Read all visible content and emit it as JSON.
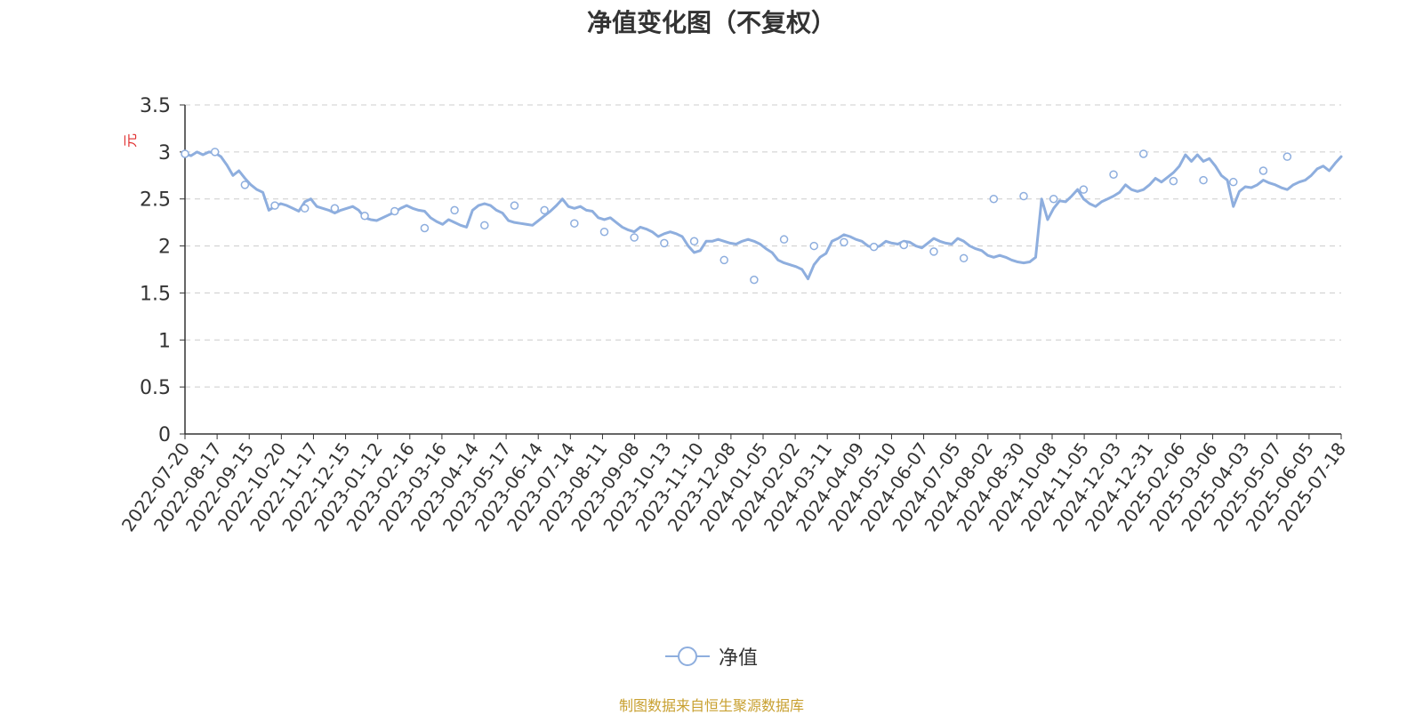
{
  "chart_data": {
    "type": "line",
    "title": "净值变化图（不复权）",
    "ylabel": "元",
    "ylim": [
      0,
      3.5
    ],
    "yticks": [
      "0",
      "0.5",
      "1",
      "1.5",
      "2",
      "2.5",
      "3",
      "3.5"
    ],
    "xticks": [
      "2022-07-20",
      "2022-08-17",
      "2022-09-15",
      "2022-10-20",
      "2022-11-17",
      "2022-12-15",
      "2023-01-12",
      "2023-02-16",
      "2023-03-16",
      "2023-04-14",
      "2023-05-17",
      "2023-06-14",
      "2023-07-14",
      "2023-08-11",
      "2023-09-08",
      "2023-10-13",
      "2023-11-10",
      "2023-12-08",
      "2024-01-05",
      "2024-02-02",
      "2024-03-11",
      "2024-04-09",
      "2024-05-10",
      "2024-06-07",
      "2024-07-05",
      "2024-08-02",
      "2024-08-30",
      "2024-10-08",
      "2024-11-05",
      "2024-12-03",
      "2024-12-31",
      "2025-02-06",
      "2025-03-06",
      "2025-04-03",
      "2025-05-07",
      "2025-06-05",
      "2025-07-18"
    ],
    "grid": true,
    "legend_position": "bottom-center",
    "series": [
      {
        "name": "净值",
        "color": "#8eaede",
        "values": [
          2.98,
          2.96,
          3.0,
          2.97,
          3.0,
          2.99,
          2.95,
          2.86,
          2.75,
          2.8,
          2.72,
          2.65,
          2.6,
          2.57,
          2.38,
          2.42,
          2.45,
          2.43,
          2.4,
          2.37,
          2.47,
          2.5,
          2.42,
          2.4,
          2.38,
          2.35,
          2.38,
          2.4,
          2.42,
          2.38,
          2.3,
          2.28,
          2.27,
          2.3,
          2.33,
          2.36,
          2.4,
          2.43,
          2.4,
          2.38,
          2.37,
          2.3,
          2.26,
          2.23,
          2.28,
          2.25,
          2.22,
          2.2,
          2.38,
          2.43,
          2.45,
          2.43,
          2.38,
          2.35,
          2.27,
          2.25,
          2.24,
          2.23,
          2.22,
          2.27,
          2.32,
          2.37,
          2.43,
          2.5,
          2.42,
          2.4,
          2.42,
          2.38,
          2.37,
          2.3,
          2.28,
          2.3,
          2.25,
          2.2,
          2.17,
          2.15,
          2.2,
          2.18,
          2.15,
          2.1,
          2.13,
          2.15,
          2.13,
          2.1,
          2.0,
          1.93,
          1.95,
          2.05,
          2.05,
          2.07,
          2.05,
          2.03,
          2.02,
          2.05,
          2.07,
          2.05,
          2.02,
          1.97,
          1.93,
          1.85,
          1.82,
          1.8,
          1.78,
          1.75,
          1.65,
          1.8,
          1.88,
          1.92,
          2.05,
          2.08,
          2.12,
          2.1,
          2.07,
          2.05,
          2.0,
          1.98,
          2.0,
          2.05,
          2.03,
          2.02,
          2.05,
          2.04,
          2.0,
          1.98,
          2.03,
          2.08,
          2.05,
          2.03,
          2.02,
          2.08,
          2.05,
          2.0,
          1.97,
          1.95,
          1.9,
          1.88,
          1.9,
          1.88,
          1.85,
          1.83,
          1.82,
          1.83,
          1.88,
          2.5,
          2.28,
          2.4,
          2.48,
          2.47,
          2.53,
          2.6,
          2.5,
          2.45,
          2.42,
          2.47,
          2.5,
          2.53,
          2.57,
          2.65,
          2.6,
          2.58,
          2.6,
          2.65,
          2.72,
          2.68,
          2.73,
          2.78,
          2.85,
          2.97,
          2.9,
          2.97,
          2.9,
          2.93,
          2.85,
          2.75,
          2.7,
          2.42,
          2.58,
          2.63,
          2.62,
          2.65,
          2.7,
          2.67,
          2.65,
          2.62,
          2.6,
          2.65,
          2.68,
          2.7,
          2.75,
          2.82,
          2.85,
          2.8,
          2.88,
          2.95
        ]
      }
    ],
    "markers": [
      {
        "index": 0,
        "value": 2.98
      },
      {
        "index": 5,
        "value": 3.0
      },
      {
        "index": 10,
        "value": 2.65
      },
      {
        "index": 15,
        "value": 2.43
      },
      {
        "index": 20,
        "value": 2.4
      },
      {
        "index": 25,
        "value": 2.4
      },
      {
        "index": 30,
        "value": 2.32
      },
      {
        "index": 35,
        "value": 2.37
      },
      {
        "index": 40,
        "value": 2.19
      },
      {
        "index": 45,
        "value": 2.38
      },
      {
        "index": 50,
        "value": 2.22
      },
      {
        "index": 55,
        "value": 2.43
      },
      {
        "index": 60,
        "value": 2.38
      },
      {
        "index": 65,
        "value": 2.24
      },
      {
        "index": 70,
        "value": 2.15
      },
      {
        "index": 75,
        "value": 2.09
      },
      {
        "index": 80,
        "value": 2.03
      },
      {
        "index": 85,
        "value": 2.05
      },
      {
        "index": 90,
        "value": 1.85
      },
      {
        "index": 95,
        "value": 1.64
      },
      {
        "index": 100,
        "value": 2.07
      },
      {
        "index": 105,
        "value": 2.0
      },
      {
        "index": 110,
        "value": 2.04
      },
      {
        "index": 115,
        "value": 1.99
      },
      {
        "index": 120,
        "value": 2.01
      },
      {
        "index": 125,
        "value": 1.94
      },
      {
        "index": 130,
        "value": 1.87
      },
      {
        "index": 135,
        "value": 2.5
      },
      {
        "index": 140,
        "value": 2.53
      },
      {
        "index": 145,
        "value": 2.5
      },
      {
        "index": 150,
        "value": 2.6
      },
      {
        "index": 155,
        "value": 2.76
      },
      {
        "index": 160,
        "value": 2.98
      },
      {
        "index": 165,
        "value": 2.69
      },
      {
        "index": 170,
        "value": 2.7
      },
      {
        "index": 175,
        "value": 2.68
      },
      {
        "index": 180,
        "value": 2.8
      },
      {
        "index": 184,
        "value": 2.95
      }
    ]
  },
  "legend": {
    "label": "净值"
  },
  "footer": {
    "source_note": "制图数据来自恒生聚源数据库"
  },
  "colors": {
    "line": "#8eaede",
    "grid": "#cccccc",
    "axis": "#333333",
    "ylabel": "#e03030",
    "source": "#c8a030"
  }
}
